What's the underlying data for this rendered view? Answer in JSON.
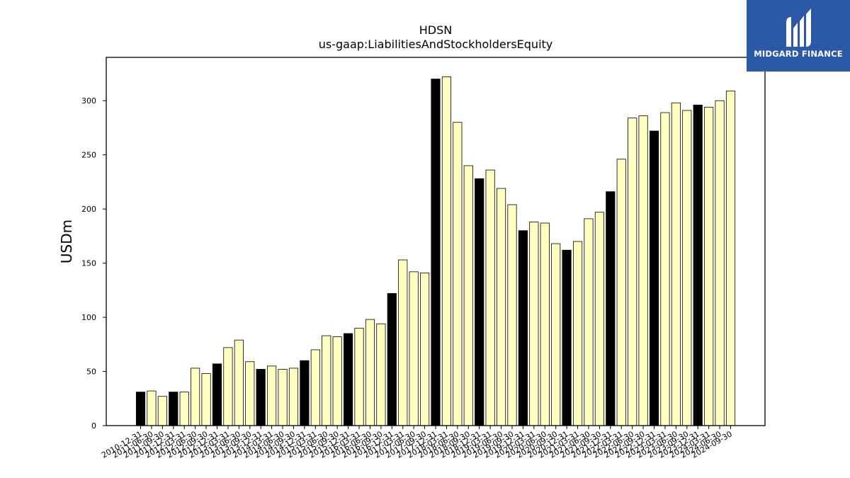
{
  "logo": {
    "text": "MIDGARD FINANCE",
    "icon": "midgard-m-logo-icon",
    "background": "#2c58a8"
  },
  "chart_data": {
    "type": "bar",
    "title": "HDSN",
    "subtitle": "us-gaap:LiabilitiesAndStockholdersEquity",
    "ylabel": "USDm",
    "xlabel": "",
    "ylim": [
      0,
      340
    ],
    "yticks": [
      0,
      50,
      100,
      150,
      200,
      250,
      300
    ],
    "grid": false,
    "colors": {
      "annual": "#000000",
      "quarterly": "#ffffc0",
      "edge": "#000000"
    },
    "categories": [
      "2010-12-31",
      "2011-06-30",
      "2011-09-30",
      "2011-12-31",
      "2012-03-31",
      "2012-06-30",
      "2012-09-30",
      "2012-12-31",
      "2013-03-31",
      "2013-06-30",
      "2013-09-30",
      "2013-12-31",
      "2014-03-31",
      "2014-06-30",
      "2014-09-30",
      "2014-12-31",
      "2015-03-31",
      "2015-06-30",
      "2015-09-30",
      "2015-12-31",
      "2016-03-31",
      "2016-06-30",
      "2016-09-30",
      "2016-12-31",
      "2017-03-31",
      "2017-06-30",
      "2017-09-30",
      "2017-12-31",
      "2018-03-31",
      "2018-06-30",
      "2018-09-30",
      "2018-12-31",
      "2019-03-31",
      "2019-06-30",
      "2019-09-30",
      "2019-12-31",
      "2020-03-31",
      "2020-06-30",
      "2020-09-30",
      "2020-12-31",
      "2021-03-31",
      "2021-06-30",
      "2021-09-30",
      "2021-12-31",
      "2022-03-31",
      "2022-06-30",
      "2022-09-30",
      "2022-12-31",
      "2023-03-31",
      "2023-06-30",
      "2023-09-30",
      "2023-12-31",
      "2024-03-31",
      "2024-06-30",
      "2024-09-30"
    ],
    "values": [
      31,
      32,
      27,
      31,
      31,
      53,
      48,
      57,
      72,
      79,
      59,
      52,
      55,
      52,
      53,
      60,
      70,
      83,
      82,
      85,
      90,
      98,
      94,
      122,
      153,
      142,
      141,
      320,
      322,
      280,
      240,
      228,
      236,
      219,
      204,
      180,
      188,
      187,
      168,
      162,
      170,
      191,
      197,
      216,
      246,
      284,
      286,
      272,
      289,
      298,
      291,
      296,
      294,
      300,
      309
    ],
    "period_type": [
      "annual",
      "quarterly",
      "quarterly",
      "annual",
      "quarterly",
      "quarterly",
      "quarterly",
      "annual",
      "quarterly",
      "quarterly",
      "quarterly",
      "annual",
      "quarterly",
      "quarterly",
      "quarterly",
      "annual",
      "quarterly",
      "quarterly",
      "quarterly",
      "annual",
      "quarterly",
      "quarterly",
      "quarterly",
      "annual",
      "quarterly",
      "quarterly",
      "quarterly",
      "annual",
      "quarterly",
      "quarterly",
      "quarterly",
      "annual",
      "quarterly",
      "quarterly",
      "quarterly",
      "annual",
      "quarterly",
      "quarterly",
      "quarterly",
      "annual",
      "quarterly",
      "quarterly",
      "quarterly",
      "annual",
      "quarterly",
      "quarterly",
      "quarterly",
      "annual",
      "quarterly",
      "quarterly",
      "quarterly",
      "annual",
      "quarterly",
      "quarterly",
      "quarterly"
    ]
  }
}
